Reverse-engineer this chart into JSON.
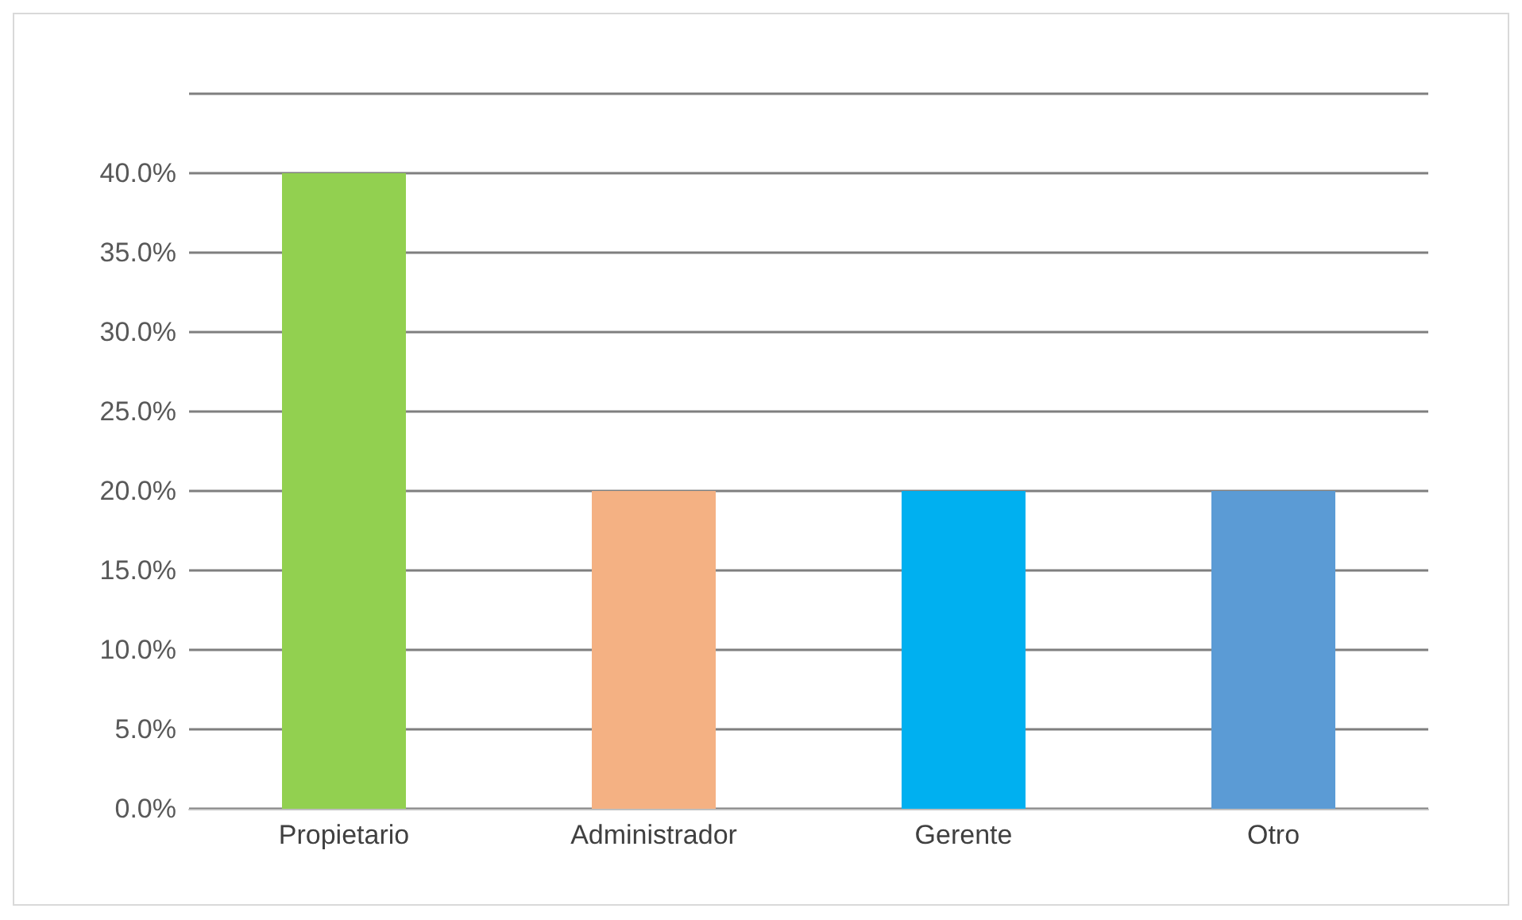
{
  "chart_data": {
    "type": "bar",
    "categories": [
      "Propietario",
      "Administrador",
      "Gerente",
      "Otro"
    ],
    "values": [
      40,
      20,
      20,
      20
    ],
    "colors": [
      "#92d050",
      "#f4b183",
      "#00b0f0",
      "#5b9bd5"
    ],
    "ylim": [
      0,
      45
    ],
    "yticks": [
      {
        "value": 0,
        "label": "0.0%"
      },
      {
        "value": 5,
        "label": "5.0%"
      },
      {
        "value": 10,
        "label": "10.0%"
      },
      {
        "value": 15,
        "label": "15.0%"
      },
      {
        "value": 20,
        "label": "20.0%"
      },
      {
        "value": 25,
        "label": "25.0%"
      },
      {
        "value": 30,
        "label": "30.0%"
      },
      {
        "value": 35,
        "label": "35.0%"
      },
      {
        "value": 40,
        "label": "40.0%"
      },
      {
        "value": 45,
        "label": null
      }
    ],
    "grid": "y"
  }
}
